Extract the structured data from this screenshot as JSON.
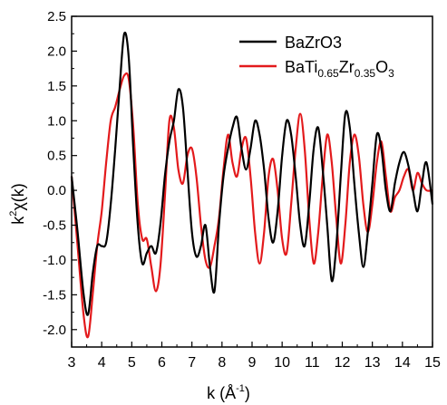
{
  "chart_data": {
    "type": "line",
    "xlabel": "k (Å-1)",
    "xlabel_main": "k (Å",
    "xlabel_sup": "-1",
    "xlabel_close": ")",
    "ylabel": "k2χ(k)",
    "ylabel_k": "k",
    "ylabel_sup": "2",
    "ylabel_rest": "χ(k)",
    "xlim": [
      3,
      15
    ],
    "ylim": [
      -2.25,
      2.5
    ],
    "x_ticks": [
      3,
      4,
      5,
      6,
      7,
      8,
      9,
      10,
      11,
      12,
      13,
      14,
      15
    ],
    "y_ticks": [
      -2.0,
      -1.5,
      -1.0,
      -0.5,
      0.0,
      0.5,
      1.0,
      1.5,
      2.0,
      2.5
    ],
    "x_tick_labels": [
      "3",
      "4",
      "5",
      "6",
      "7",
      "8",
      "9",
      "10",
      "11",
      "12",
      "13",
      "14",
      "15"
    ],
    "y_tick_labels": [
      "-2.0",
      "-1.5",
      "-1.0",
      "-0.5",
      "0.0",
      "0.5",
      "1.0",
      "1.5",
      "2.0",
      "2.5"
    ],
    "grid": false,
    "legend_position": "top-right",
    "series": [
      {
        "name": "BaZrO3",
        "color": "#000000",
        "x": [
          3.0,
          3.2,
          3.4,
          3.55,
          3.7,
          3.85,
          4.0,
          4.15,
          4.3,
          4.45,
          4.6,
          4.75,
          4.9,
          5.05,
          5.2,
          5.35,
          5.5,
          5.65,
          5.8,
          5.95,
          6.1,
          6.25,
          6.4,
          6.55,
          6.7,
          6.85,
          7.0,
          7.15,
          7.3,
          7.45,
          7.6,
          7.75,
          7.9,
          8.05,
          8.2,
          8.35,
          8.5,
          8.65,
          8.8,
          8.95,
          9.1,
          9.25,
          9.4,
          9.55,
          9.7,
          9.85,
          10.0,
          10.15,
          10.3,
          10.45,
          10.6,
          10.75,
          10.9,
          11.05,
          11.2,
          11.35,
          11.5,
          11.65,
          11.8,
          11.95,
          12.1,
          12.25,
          12.4,
          12.55,
          12.7,
          12.85,
          13.0,
          13.15,
          13.3,
          13.45,
          13.6,
          13.75,
          13.9,
          14.05,
          14.2,
          14.35,
          14.5,
          14.65,
          14.8,
          15.0
        ],
        "y": [
          0.2,
          -0.6,
          -1.5,
          -1.78,
          -1.2,
          -0.8,
          -0.8,
          -0.75,
          -0.2,
          0.6,
          1.5,
          2.25,
          1.9,
          0.6,
          -0.5,
          -1.05,
          -0.9,
          -0.8,
          -0.9,
          -0.5,
          0.2,
          0.7,
          1.0,
          1.45,
          1.2,
          0.3,
          -0.6,
          -0.95,
          -0.8,
          -0.5,
          -1.1,
          -1.45,
          -0.5,
          0.2,
          0.6,
          0.9,
          1.05,
          0.6,
          0.3,
          0.6,
          1.0,
          0.8,
          0.3,
          -0.4,
          -0.75,
          -0.3,
          0.5,
          1.0,
          0.8,
          0.2,
          -0.5,
          -0.8,
          -0.2,
          0.6,
          0.9,
          0.3,
          -0.5,
          -1.3,
          -0.8,
          0.2,
          1.1,
          0.9,
          0.1,
          -0.6,
          -1.1,
          -0.6,
          0.1,
          0.8,
          0.6,
          0.0,
          -0.3,
          0.1,
          0.4,
          0.55,
          0.35,
          0.0,
          -0.3,
          0.1,
          0.4,
          -0.2
        ]
      },
      {
        "name_base": "BaTi",
        "name_sub1": "0.65",
        "name_mid": "Zr",
        "name_sub2": "0.35",
        "name_end": "O",
        "name_sub3": "3",
        "color": "#e31a1c",
        "x": [
          3.0,
          3.2,
          3.4,
          3.55,
          3.7,
          3.85,
          4.0,
          4.15,
          4.3,
          4.45,
          4.6,
          4.75,
          4.9,
          5.05,
          5.2,
          5.35,
          5.5,
          5.65,
          5.8,
          5.95,
          6.1,
          6.25,
          6.4,
          6.55,
          6.7,
          6.85,
          7.0,
          7.15,
          7.3,
          7.45,
          7.6,
          7.75,
          7.9,
          8.05,
          8.2,
          8.35,
          8.5,
          8.65,
          8.8,
          8.95,
          9.1,
          9.25,
          9.4,
          9.55,
          9.7,
          9.85,
          10.0,
          10.15,
          10.3,
          10.45,
          10.6,
          10.75,
          10.9,
          11.05,
          11.2,
          11.35,
          11.5,
          11.65,
          11.8,
          11.95,
          12.1,
          12.25,
          12.4,
          12.55,
          12.7,
          12.85,
          13.0,
          13.15,
          13.3,
          13.45,
          13.6,
          13.75,
          13.9,
          14.05,
          14.2,
          14.35,
          14.5,
          14.65,
          14.8,
          15.0
        ],
        "y": [
          0.2,
          -0.8,
          -1.8,
          -2.1,
          -1.5,
          -0.8,
          -0.3,
          0.4,
          1.0,
          1.2,
          1.45,
          1.65,
          1.6,
          0.9,
          -0.2,
          -0.7,
          -0.7,
          -1.1,
          -1.45,
          -1.1,
          -0.1,
          1.0,
          0.9,
          0.3,
          0.1,
          0.5,
          0.6,
          0.2,
          -0.5,
          -1.0,
          -1.1,
          -0.8,
          -0.4,
          0.3,
          0.8,
          0.4,
          0.2,
          0.6,
          0.75,
          0.2,
          -0.6,
          -1.05,
          -0.6,
          0.2,
          0.45,
          0.0,
          -0.7,
          -0.9,
          -0.2,
          0.6,
          1.1,
          0.6,
          -0.4,
          -1.05,
          -0.6,
          0.2,
          0.8,
          0.4,
          -0.4,
          -1.05,
          -0.5,
          0.4,
          0.8,
          0.5,
          -0.2,
          -0.6,
          -0.2,
          0.4,
          0.7,
          0.2,
          -0.3,
          -0.1,
          0.0,
          0.2,
          0.3,
          0.0,
          0.25,
          0.1,
          0.0,
          0.0
        ]
      }
    ]
  }
}
